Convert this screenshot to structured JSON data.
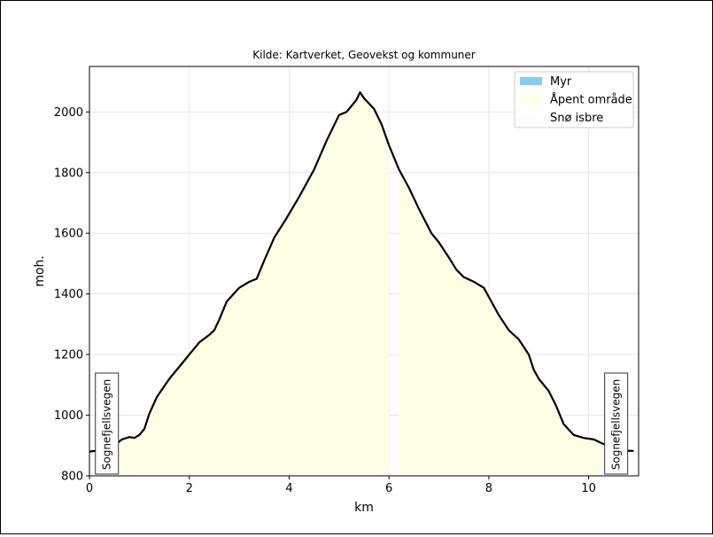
{
  "chart_data": {
    "type": "area",
    "title": "Kilde: Kartverket, Geovekst og kommuner",
    "xlabel": "km",
    "ylabel": "moh.",
    "xlim": [
      0,
      11
    ],
    "ylim": [
      800,
      2150
    ],
    "x_ticks": [
      0,
      2,
      4,
      6,
      8,
      10
    ],
    "y_ticks": [
      800,
      1000,
      1200,
      1400,
      1600,
      1800,
      2000
    ],
    "grid": true,
    "legend_position": "top-right",
    "legend": [
      {
        "name": "Myr",
        "color": "#87cbee"
      },
      {
        "name": "Åpent område",
        "color": "#fefee6"
      },
      {
        "name": "Snø isbre",
        "color": "#fcfdfe"
      }
    ],
    "land_cover": [
      {
        "name": "Åpent område",
        "from_km": 0.6,
        "to_km": 6.0
      },
      {
        "name": "Åpent område",
        "from_km": 6.2,
        "to_km": 10.3
      }
    ],
    "profile": {
      "x": [
        0.0,
        0.25,
        0.5,
        0.65,
        0.8,
        0.9,
        1.0,
        1.1,
        1.2,
        1.35,
        1.6,
        1.9,
        2.0,
        2.2,
        2.4,
        2.5,
        2.6,
        2.75,
        3.0,
        3.2,
        3.35,
        3.5,
        3.7,
        3.95,
        4.2,
        4.5,
        4.75,
        5.0,
        5.15,
        5.25,
        5.35,
        5.42,
        5.5,
        5.7,
        5.85,
        6.0,
        6.2,
        6.4,
        6.6,
        6.85,
        7.0,
        7.2,
        7.35,
        7.5,
        7.7,
        7.9,
        8.0,
        8.2,
        8.4,
        8.6,
        8.8,
        8.9,
        9.0,
        9.2,
        9.35,
        9.5,
        9.7,
        9.9,
        10.1,
        10.3,
        10.5,
        10.6,
        10.75,
        10.9
      ],
      "y": [
        880,
        885,
        900,
        920,
        928,
        925,
        935,
        955,
        1005,
        1060,
        1120,
        1180,
        1200,
        1240,
        1265,
        1280,
        1315,
        1375,
        1420,
        1440,
        1450,
        1510,
        1585,
        1650,
        1720,
        1810,
        1905,
        1990,
        2000,
        2020,
        2040,
        2065,
        2045,
        2010,
        1960,
        1890,
        1810,
        1750,
        1680,
        1600,
        1570,
        1520,
        1480,
        1455,
        1440,
        1420,
        1390,
        1330,
        1280,
        1250,
        1200,
        1150,
        1120,
        1080,
        1030,
        970,
        935,
        925,
        920,
        905,
        892,
        885,
        883,
        882
      ]
    },
    "annotations": [
      {
        "text": "Sognefjellsvegen",
        "x_km": 0.35
      },
      {
        "text": "Sognefjellsvegen",
        "x_km": 10.55
      }
    ]
  }
}
